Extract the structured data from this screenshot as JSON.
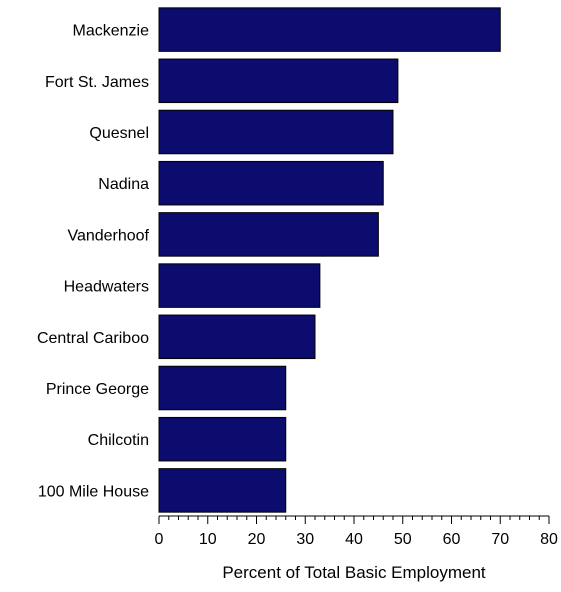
{
  "chart_data": {
    "type": "bar",
    "orientation": "horizontal",
    "categories": [
      "Mackenzie",
      "Fort St. James",
      "Quesnel",
      "Nadina",
      "Vanderhoof",
      "Headwaters",
      "Central Cariboo",
      "Prince George",
      "Chilcotin",
      "100 Mile House"
    ],
    "values": [
      70,
      49,
      48,
      46,
      45,
      33,
      32,
      26,
      26,
      26
    ],
    "title": "",
    "xlabel": "Percent of Total Basic Employment",
    "ylabel": "",
    "xlim": [
      0,
      80
    ],
    "x_ticks": [
      "0",
      "10",
      "20",
      "30",
      "40",
      "50",
      "60",
      "70",
      "80"
    ],
    "grid": false,
    "legend": "none",
    "colors": {
      "bar_fill": "#0c0c6e",
      "bar_stroke": "#000000",
      "axis": "#000000",
      "text": "#000000"
    }
  }
}
